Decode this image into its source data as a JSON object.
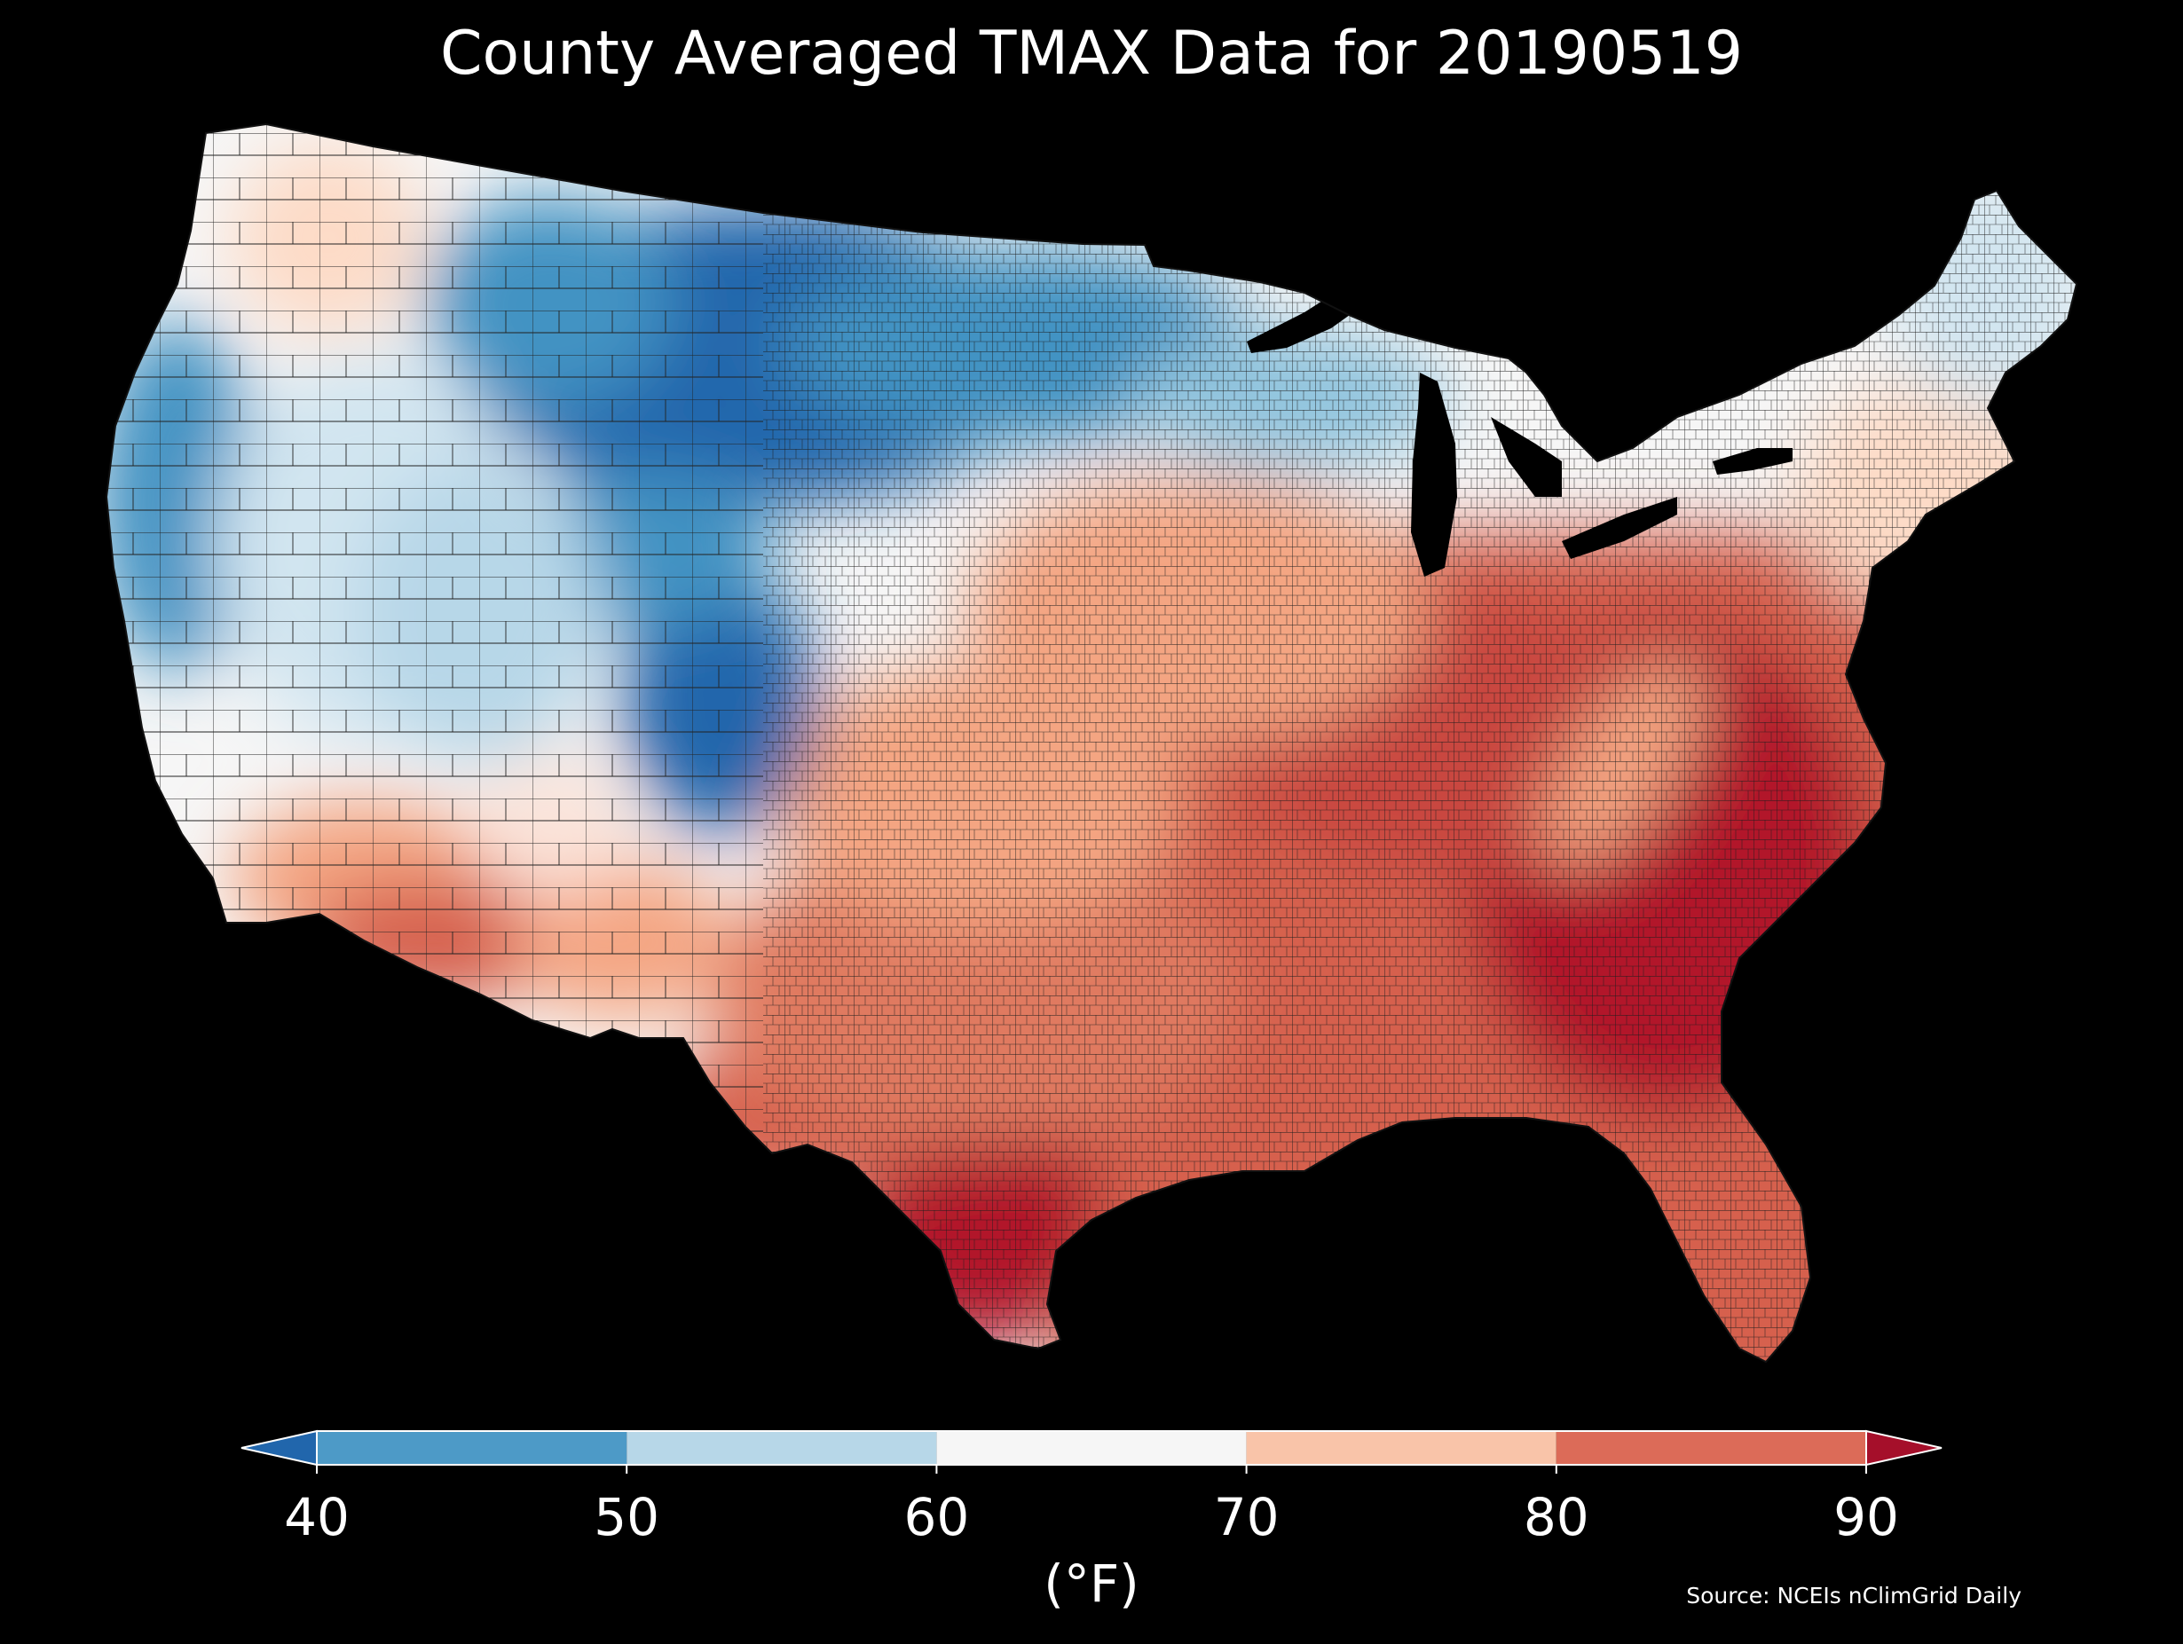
{
  "title": "County Averaged TMAX Data for 20190519",
  "colorbar": {
    "unit_label": "(°F)",
    "ticks": [
      "40",
      "50",
      "60",
      "70",
      "80",
      "90"
    ],
    "bins": [
      {
        "from": 40,
        "to": 50,
        "color": "#4d9ac7"
      },
      {
        "from": 50,
        "to": 60,
        "color": "#b7d7e8"
      },
      {
        "from": 60,
        "to": 70,
        "color": "#f6f6f6"
      },
      {
        "from": 70,
        "to": 80,
        "color": "#f9c4a9"
      },
      {
        "from": 80,
        "to": 90,
        "color": "#dc6b58"
      }
    ],
    "under_color": "#2166ac",
    "over_color": "#a50f2a",
    "extend": "both"
  },
  "source": "Source: NCEIs nClimGrid Daily",
  "map": {
    "extent": "contiguous-united-states",
    "unit": "county",
    "variable": "TMAX",
    "ocean_color": "#000000",
    "county_border_color": "#222222",
    "regional_tmax_f": [
      {
        "region": "Pacific Northwest coast",
        "value_range": [
          50,
          60
        ]
      },
      {
        "region": "Northern Rockies / Montana",
        "value_range": [
          40,
          50
        ]
      },
      {
        "region": "Colorado Rockies",
        "value_range": [
          40,
          50
        ]
      },
      {
        "region": "Great Basin / Nevada / Utah",
        "value_range": [
          50,
          70
        ]
      },
      {
        "region": "Arizona desert / southern California",
        "value_range": [
          70,
          90
        ]
      },
      {
        "region": "Upper Midwest / Great Lakes",
        "value_range": [
          50,
          60
        ]
      },
      {
        "region": "Central Plains",
        "value_range": [
          60,
          80
        ]
      },
      {
        "region": "Ohio Valley / Southeast",
        "value_range": [
          80,
          90
        ]
      },
      {
        "region": "Georgia / Carolinas / South Texas",
        "value_range": [
          90,
          95
        ]
      },
      {
        "region": "New England",
        "value_range": [
          55,
          70
        ]
      }
    ]
  }
}
